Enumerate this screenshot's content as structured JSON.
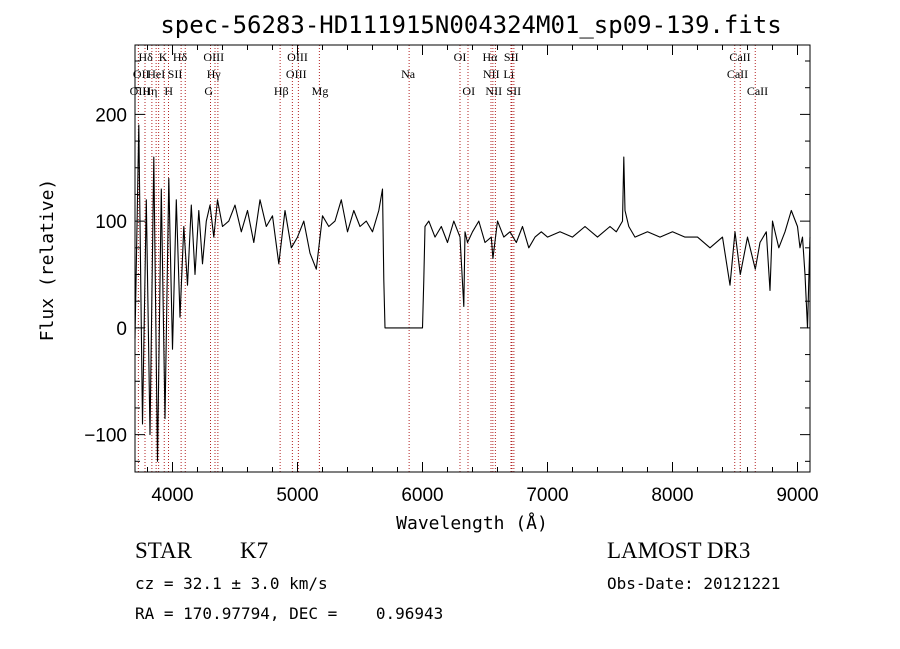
{
  "chart_data": {
    "type": "line",
    "title": "spec-56283-HD111915N004324M01_sp09-139.fits",
    "xlabel": "Wavelength (Å)",
    "ylabel": "Flux (relative)",
    "xlim": [
      3700,
      9100
    ],
    "ylim": [
      -135,
      265
    ],
    "x_ticks": [
      4000,
      5000,
      6000,
      7000,
      8000,
      9000
    ],
    "y_ticks": [
      -100,
      0,
      100,
      200
    ],
    "grid": false,
    "spectrum": {
      "x": [
        3700,
        3730,
        3760,
        3790,
        3820,
        3850,
        3880,
        3910,
        3940,
        3970,
        4000,
        4030,
        4060,
        4090,
        4120,
        4150,
        4180,
        4210,
        4240,
        4270,
        4300,
        4330,
        4360,
        4400,
        4450,
        4500,
        4550,
        4600,
        4650,
        4700,
        4750,
        4800,
        4850,
        4900,
        4950,
        5000,
        5050,
        5100,
        5150,
        5200,
        5250,
        5300,
        5350,
        5400,
        5450,
        5500,
        5550,
        5600,
        5650,
        5680,
        5690,
        5700,
        5800,
        5900,
        6000,
        6010,
        6020,
        6050,
        6100,
        6150,
        6200,
        6250,
        6300,
        6330,
        6340,
        6360,
        6400,
        6450,
        6500,
        6550,
        6563,
        6600,
        6650,
        6700,
        6750,
        6800,
        6850,
        6900,
        6950,
        7000,
        7100,
        7200,
        7300,
        7400,
        7500,
        7550,
        7600,
        7610,
        7620,
        7650,
        7700,
        7800,
        7900,
        8000,
        8100,
        8200,
        8300,
        8400,
        8460,
        8500,
        8542,
        8600,
        8662,
        8700,
        8750,
        8780,
        8800,
        8850,
        8900,
        8950,
        9000,
        9020,
        9040,
        9060,
        9080,
        9100
      ],
      "y": [
        -10,
        190,
        -90,
        120,
        -100,
        160,
        -125,
        130,
        -85,
        140,
        -20,
        120,
        10,
        95,
        40,
        115,
        50,
        110,
        60,
        100,
        115,
        85,
        120,
        95,
        100,
        115,
        90,
        110,
        80,
        120,
        95,
        105,
        60,
        110,
        75,
        85,
        100,
        70,
        55,
        105,
        95,
        100,
        120,
        90,
        110,
        95,
        100,
        90,
        110,
        130,
        45,
        0,
        0,
        0,
        0,
        45,
        95,
        100,
        85,
        95,
        80,
        100,
        85,
        20,
        90,
        80,
        90,
        100,
        80,
        85,
        65,
        100,
        85,
        90,
        80,
        95,
        75,
        85,
        90,
        85,
        90,
        85,
        95,
        85,
        95,
        90,
        100,
        160,
        110,
        95,
        85,
        90,
        85,
        90,
        85,
        85,
        75,
        85,
        40,
        90,
        50,
        85,
        55,
        80,
        90,
        35,
        100,
        75,
        90,
        110,
        95,
        75,
        85,
        50,
        0,
        85
      ]
    },
    "lines": [
      {
        "label": "Hδ",
        "x": 3780,
        "row": 1,
        "label_x": 3785
      },
      {
        "label": "K",
        "x": 3934,
        "row": 1,
        "label_x": 3925
      },
      {
        "label": "Hδ",
        "x": 4102,
        "row": 1,
        "label_x": 4060
      },
      {
        "label": "OIII",
        "x": 4363,
        "row": 1,
        "label_x": 4330
      },
      {
        "label": "OIII",
        "x": 4959,
        "row": 1,
        "label_x": 5000
      },
      {
        "label": "OI",
        "x": 6300,
        "row": 1,
        "label_x": 6300
      },
      {
        "label": "Hα",
        "x": 6563,
        "row": 1,
        "label_x": 6540
      },
      {
        "label": "SII",
        "x": 6716,
        "row": 1,
        "label_x": 6710
      },
      {
        "label": "CaII",
        "x": 8498,
        "row": 1,
        "label_x": 8540
      },
      {
        "label": "OII",
        "x": 3727,
        "row": 2,
        "label_x": 3750
      },
      {
        "label": "HeI",
        "x": 3889,
        "row": 2,
        "label_x": 3870
      },
      {
        "label": "SII",
        "x": 4069,
        "row": 2,
        "label_x": 4020
      },
      {
        "label": "Hγ",
        "x": 4340,
        "row": 2,
        "label_x": 4330
      },
      {
        "label": "OIII",
        "x": 5007,
        "row": 2,
        "label_x": 4990
      },
      {
        "label": "Na",
        "x": 5893,
        "row": 2,
        "label_x": 5885
      },
      {
        "label": "NII",
        "x": 6548,
        "row": 2,
        "label_x": 6550
      },
      {
        "label": "Li",
        "x": 6708,
        "row": 2,
        "label_x": 6690
      },
      {
        "label": "CaII",
        "x": 8542,
        "row": 2,
        "label_x": 8520
      },
      {
        "label": "OIII",
        "x": 3869,
        "row": 3,
        "label_x": 3740
      },
      {
        "label": "Hη",
        "x": 3835,
        "row": 3,
        "label_x": 3820
      },
      {
        "label": "H",
        "x": 3968,
        "row": 3,
        "label_x": 3970
      },
      {
        "label": "G",
        "x": 4304,
        "row": 3,
        "label_x": 4290
      },
      {
        "label": "Hβ",
        "x": 4861,
        "row": 3,
        "label_x": 4870
      },
      {
        "label": "Mg",
        "x": 5175,
        "row": 3,
        "label_x": 5180
      },
      {
        "label": "OI",
        "x": 6364,
        "row": 3,
        "label_x": 6370
      },
      {
        "label": "NII",
        "x": 6583,
        "row": 3,
        "label_x": 6570
      },
      {
        "label": "SII",
        "x": 6731,
        "row": 3,
        "label_x": 6730
      },
      {
        "label": "CaII",
        "x": 8662,
        "row": 3,
        "label_x": 8680
      }
    ],
    "colors": {
      "spectrum": "#000000",
      "lines": "#b22222",
      "axes": "#000000"
    }
  },
  "info": {
    "class": "STAR",
    "subclass": "K7",
    "survey": "LAMOST DR3",
    "cz": "cz = 32.1 ± 3.0 km/s",
    "obs_date": "Obs-Date: 20121221",
    "radec": "RA = 170.97794, DEC =    0.96943"
  }
}
